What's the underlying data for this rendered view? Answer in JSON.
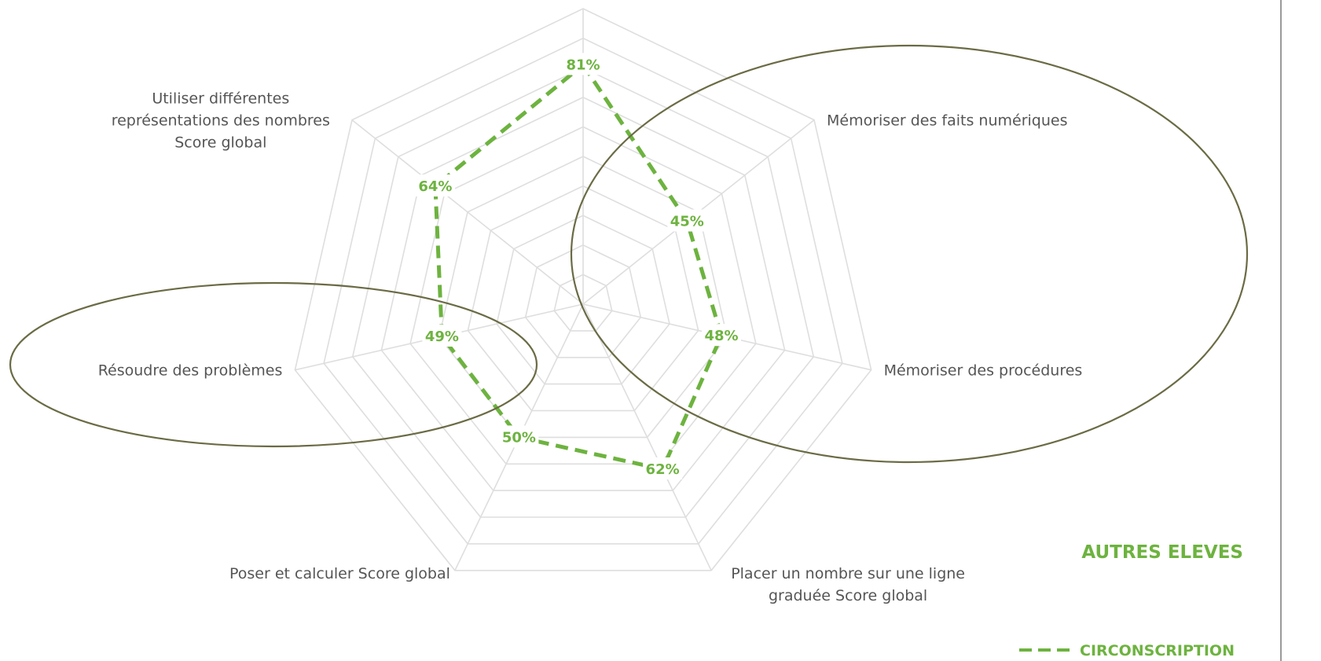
{
  "chart_data": {
    "type": "radar",
    "axes": [
      "",
      "Mémoriser des faits numériques",
      "Mémoriser des procédures",
      "Placer un nombre sur une ligne graduée Score global",
      "Poser et calculer Score global",
      "Résoudre des problèmes",
      "Utiliser différentes représentations des nombres Score global"
    ],
    "axis_labels_lines": [
      [],
      [
        "Mémoriser des faits numériques"
      ],
      [
        "Mémoriser des procédures"
      ],
      [
        "Placer un nombre sur une ligne",
        "graduée Score global"
      ],
      [
        "Poser et calculer Score global"
      ],
      [
        "Résoudre des problèmes"
      ],
      [
        "Utiliser différentes",
        "représentations des nombres",
        "Score global"
      ]
    ],
    "series": [
      {
        "name": "CIRCONSCRIPTION",
        "values": [
          81,
          45,
          48,
          62,
          50,
          49,
          64
        ],
        "labels": [
          "81%",
          "45%",
          "48%",
          "62%",
          "50%",
          "49%",
          "64%"
        ],
        "style": "dashed",
        "color": "#6db33f"
      }
    ],
    "rlim": [
      0,
      100
    ],
    "grid_rings": 10,
    "grid": true,
    "legend": [
      {
        "label": "AUTRES ELEVES",
        "color": "#6db33f",
        "style": "none"
      },
      {
        "label": "CIRCONSCRIPTION",
        "color": "#6db33f",
        "style": "dashed"
      }
    ],
    "legend_position": "bottom-right"
  },
  "annotations": {
    "highlight_color": "#6b6b45"
  }
}
